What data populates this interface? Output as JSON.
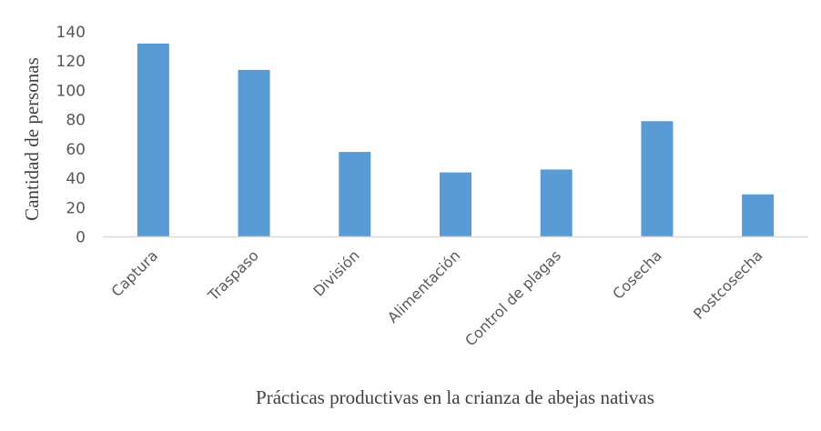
{
  "chart_data": {
    "type": "bar",
    "title": "",
    "xlabel": "Prácticas productivas en la crianza de abejas nativas",
    "ylabel": "Cantidad de personas",
    "categories": [
      "Captura",
      "Traspaso",
      "División",
      "Alimentación",
      "Control de plagas",
      "Cosecha",
      "Postcosecha"
    ],
    "values": [
      132,
      114,
      58,
      44,
      46,
      79,
      29
    ],
    "ylim": [
      0,
      140
    ],
    "yticks": [
      0,
      20,
      40,
      60,
      80,
      100,
      120,
      140
    ],
    "grid": false,
    "legend": null,
    "bar_color": "#5B9BD5",
    "axis_color": "#D9D9D9",
    "tick_label_rotation": -45
  }
}
